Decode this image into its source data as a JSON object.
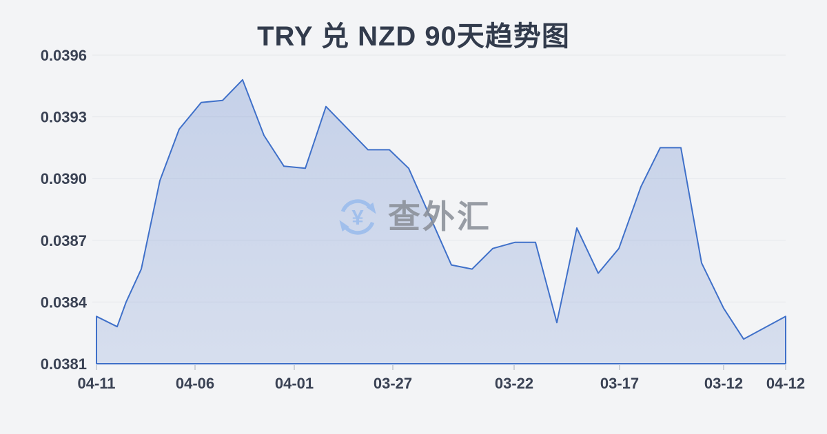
{
  "page": {
    "title": "TRY 兑 NZD 90天趋势图"
  },
  "watermark": {
    "text": "查外汇",
    "symbol": "¥"
  },
  "chart_data": {
    "type": "area",
    "title": "TRY 兑 NZD 90天趋势图",
    "xlabel": "",
    "ylabel": "",
    "ylim": [
      0.0381,
      0.0396
    ],
    "grid": true,
    "legend_position": "none",
    "y_ticks": [
      "0.0396",
      "0.0393",
      "0.0390",
      "0.0387",
      "0.0384",
      "0.0381"
    ],
    "x_ticks": [
      {
        "label": "04-11",
        "pos": 0.0
      },
      {
        "label": "04-06",
        "pos": 0.143
      },
      {
        "label": "04-01",
        "pos": 0.287
      },
      {
        "label": "03-27",
        "pos": 0.43
      },
      {
        "label": "03-22",
        "pos": 0.606
      },
      {
        "label": "03-17",
        "pos": 0.759
      },
      {
        "label": "03-12",
        "pos": 0.91
      },
      {
        "label": "04-12",
        "pos": 1.0
      }
    ],
    "series": [
      {
        "name": "TRY兑NZD",
        "points": [
          {
            "x": 0.0,
            "v": 0.03833
          },
          {
            "x": 0.03,
            "v": 0.03828
          },
          {
            "x": 0.043,
            "v": 0.0384
          },
          {
            "x": 0.065,
            "v": 0.03856
          },
          {
            "x": 0.092,
            "v": 0.03899
          },
          {
            "x": 0.12,
            "v": 0.03924
          },
          {
            "x": 0.152,
            "v": 0.03937
          },
          {
            "x": 0.183,
            "v": 0.03938
          },
          {
            "x": 0.212,
            "v": 0.03948
          },
          {
            "x": 0.243,
            "v": 0.03921
          },
          {
            "x": 0.272,
            "v": 0.03906
          },
          {
            "x": 0.303,
            "v": 0.03905
          },
          {
            "x": 0.333,
            "v": 0.03935
          },
          {
            "x": 0.394,
            "v": 0.03914
          },
          {
            "x": 0.425,
            "v": 0.03914
          },
          {
            "x": 0.453,
            "v": 0.03905
          },
          {
            "x": 0.515,
            "v": 0.03858
          },
          {
            "x": 0.545,
            "v": 0.03856
          },
          {
            "x": 0.575,
            "v": 0.03866
          },
          {
            "x": 0.607,
            "v": 0.03869
          },
          {
            "x": 0.637,
            "v": 0.03869
          },
          {
            "x": 0.668,
            "v": 0.0383
          },
          {
            "x": 0.697,
            "v": 0.03876
          },
          {
            "x": 0.728,
            "v": 0.03854
          },
          {
            "x": 0.758,
            "v": 0.03866
          },
          {
            "x": 0.79,
            "v": 0.03896
          },
          {
            "x": 0.818,
            "v": 0.03915
          },
          {
            "x": 0.848,
            "v": 0.03915
          },
          {
            "x": 0.878,
            "v": 0.03859
          },
          {
            "x": 0.91,
            "v": 0.03837
          },
          {
            "x": 0.939,
            "v": 0.03822
          },
          {
            "x": 1.0,
            "v": 0.03833
          }
        ]
      }
    ],
    "colors": {
      "line": "#3f70c9",
      "fill_top": "rgba(101,135,205,0.32)",
      "fill_bottom": "rgba(101,135,205,0.20)",
      "grid": "#e5e7eb",
      "axis_tick": "#cdd1d8",
      "text": "#3a4254",
      "watermark_blue": "#9abced",
      "watermark_gray": "#8b9099"
    }
  }
}
